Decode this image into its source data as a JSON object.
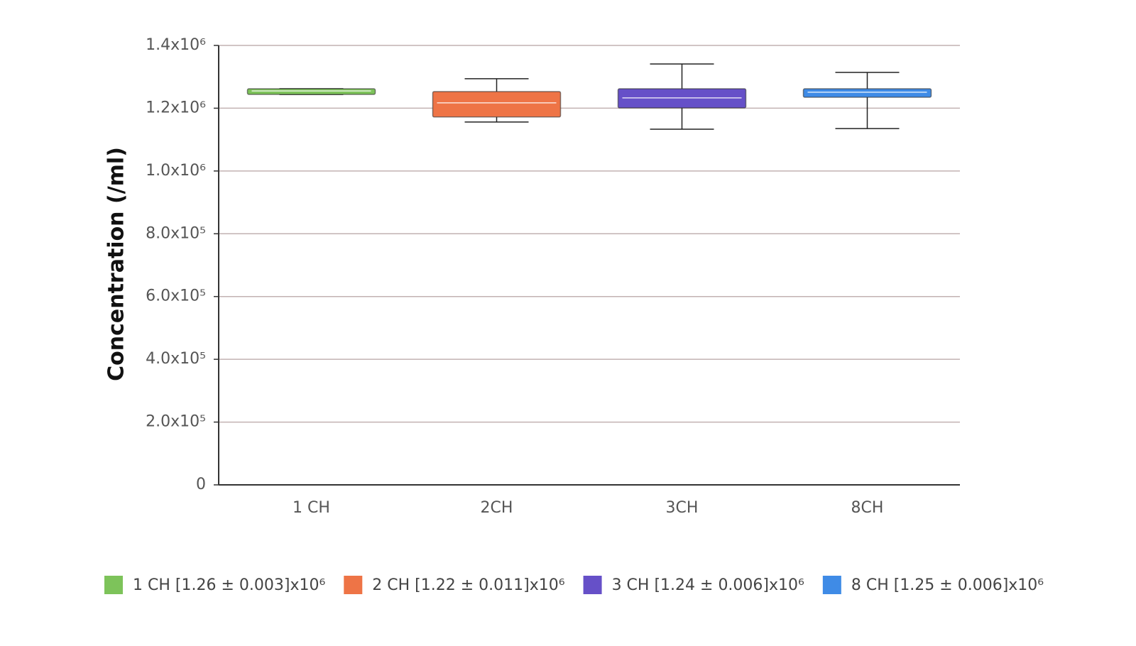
{
  "chart_data": {
    "type": "box",
    "y_label": "Concentration (/ml)",
    "categories": [
      "1 CH",
      "2CH",
      "3CH",
      "8CH"
    ],
    "series": [
      {
        "name": "1 CH [1.26 ± 0.003]x10⁶",
        "color": "#7dc35a",
        "min": 1244000,
        "q1": 1244000,
        "median": 1255000,
        "q3": 1262000,
        "max": 1262000
      },
      {
        "name": "2 CH [1.22 ± 0.011]x10⁶",
        "color": "#ee7446",
        "min": 1156000,
        "q1": 1172000,
        "median": 1217000,
        "q3": 1253000,
        "max": 1294000
      },
      {
        "name": "3 CH [1.24 ± 0.006]x10⁶",
        "color": "#6650c8",
        "min": 1133000,
        "q1": 1201000,
        "median": 1233000,
        "q3": 1262000,
        "max": 1341000
      },
      {
        "name": "8 CH [1.25 ± 0.006]x10⁶",
        "color": "#3f8be6",
        "min": 1135000,
        "q1": 1235000,
        "median": 1251000,
        "q3": 1262000,
        "max": 1314000
      }
    ],
    "ylim": [
      0,
      1400000
    ],
    "yticks": [
      0,
      {
        "value": 200000,
        "label": "2.0x10⁵"
      },
      {
        "value": 400000,
        "label": "4.0x10⁵"
      },
      {
        "value": 600000,
        "label": "6.0x10⁵"
      },
      {
        "value": 800000,
        "label": "8.0x10⁵"
      },
      {
        "value": 1000000,
        "label": "1.0x10⁶"
      },
      {
        "value": 1200000,
        "label": "1.2x10⁶"
      },
      {
        "value": 1400000,
        "label": "1.4x10⁶"
      }
    ],
    "grid": true
  }
}
